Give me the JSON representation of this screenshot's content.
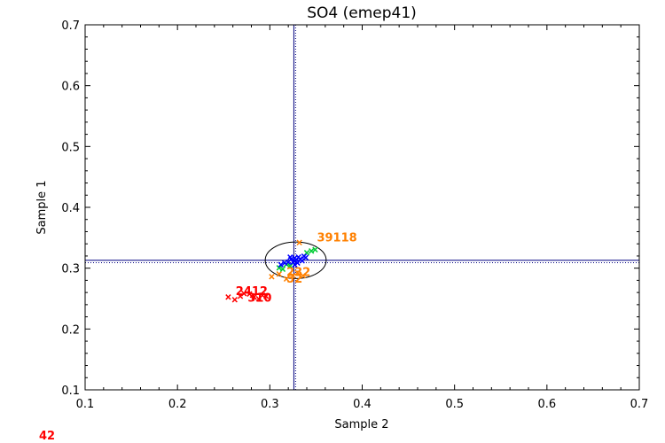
{
  "chart_data": {
    "type": "scatter",
    "title": "SO4 (emep41)",
    "xlabel": "Sample 2",
    "ylabel": "Sample 1",
    "xlim": [
      0.1,
      0.7
    ],
    "ylim": [
      0.1,
      0.7
    ],
    "xticks": [
      "0.1",
      "0.2",
      "0.3",
      "0.4",
      "0.5",
      "0.6",
      "0.7"
    ],
    "yticks": [
      "0.1",
      "0.2",
      "0.3",
      "0.4",
      "0.5",
      "0.6",
      "0.7"
    ],
    "grid": false,
    "reference_lines": {
      "x": 0.326,
      "y": 0.313,
      "y_dotted": 0.309
    },
    "ellipse": {
      "cx": 0.328,
      "cy": 0.313,
      "rx": 0.033,
      "ry": 0.03
    },
    "colors": {
      "red": "#ff0000",
      "orange": "#ff8000",
      "green": "#00cc33",
      "blue": "#0000ff",
      "navy": "#000080",
      "black": "#000000"
    },
    "series": [
      {
        "color": "#ff0000",
        "points": [
          [
            0.255,
            0.252
          ],
          [
            0.262,
            0.248
          ],
          [
            0.268,
            0.254
          ],
          [
            0.272,
            0.258
          ],
          [
            0.278,
            0.257
          ],
          [
            0.283,
            0.252
          ],
          [
            0.288,
            0.249
          ],
          [
            0.292,
            0.255
          ],
          [
            0.296,
            0.254
          ]
        ]
      },
      {
        "color": "#ff8000",
        "points": [
          [
            0.302,
            0.286
          ],
          [
            0.31,
            0.29
          ],
          [
            0.318,
            0.282
          ],
          [
            0.325,
            0.287
          ],
          [
            0.33,
            0.292
          ],
          [
            0.336,
            0.287
          ],
          [
            0.332,
            0.342
          ]
        ]
      },
      {
        "color": "#00cc33",
        "points": [
          [
            0.31,
            0.3
          ],
          [
            0.314,
            0.298
          ],
          [
            0.318,
            0.306
          ],
          [
            0.322,
            0.303
          ],
          [
            0.34,
            0.325
          ],
          [
            0.345,
            0.328
          ],
          [
            0.349,
            0.33
          ]
        ]
      },
      {
        "color": "#0000ff",
        "points": [
          [
            0.312,
            0.305
          ],
          [
            0.316,
            0.308
          ],
          [
            0.32,
            0.31
          ],
          [
            0.323,
            0.314
          ],
          [
            0.325,
            0.31
          ],
          [
            0.327,
            0.316
          ],
          [
            0.329,
            0.313
          ],
          [
            0.331,
            0.318
          ],
          [
            0.333,
            0.315
          ],
          [
            0.335,
            0.312
          ],
          [
            0.337,
            0.319
          ],
          [
            0.339,
            0.317
          ],
          [
            0.327,
            0.305
          ],
          [
            0.322,
            0.318
          ],
          [
            0.33,
            0.308
          ]
        ]
      }
    ],
    "annotations": [
      {
        "text": "39118",
        "x": 0.351,
        "y": 0.344,
        "color": "#ff8000"
      },
      {
        "text": "2412",
        "x": 0.263,
        "y": 0.256,
        "color": "#ff0000"
      },
      {
        "text": "310",
        "x": 0.276,
        "y": 0.245,
        "color": "#ff0000"
      },
      {
        "text": "232",
        "x": 0.318,
        "y": 0.287,
        "color": "#ff8000"
      },
      {
        "text": "52",
        "x": 0.318,
        "y": 0.276,
        "color": "#ff8000"
      }
    ]
  },
  "footer_note": "42"
}
